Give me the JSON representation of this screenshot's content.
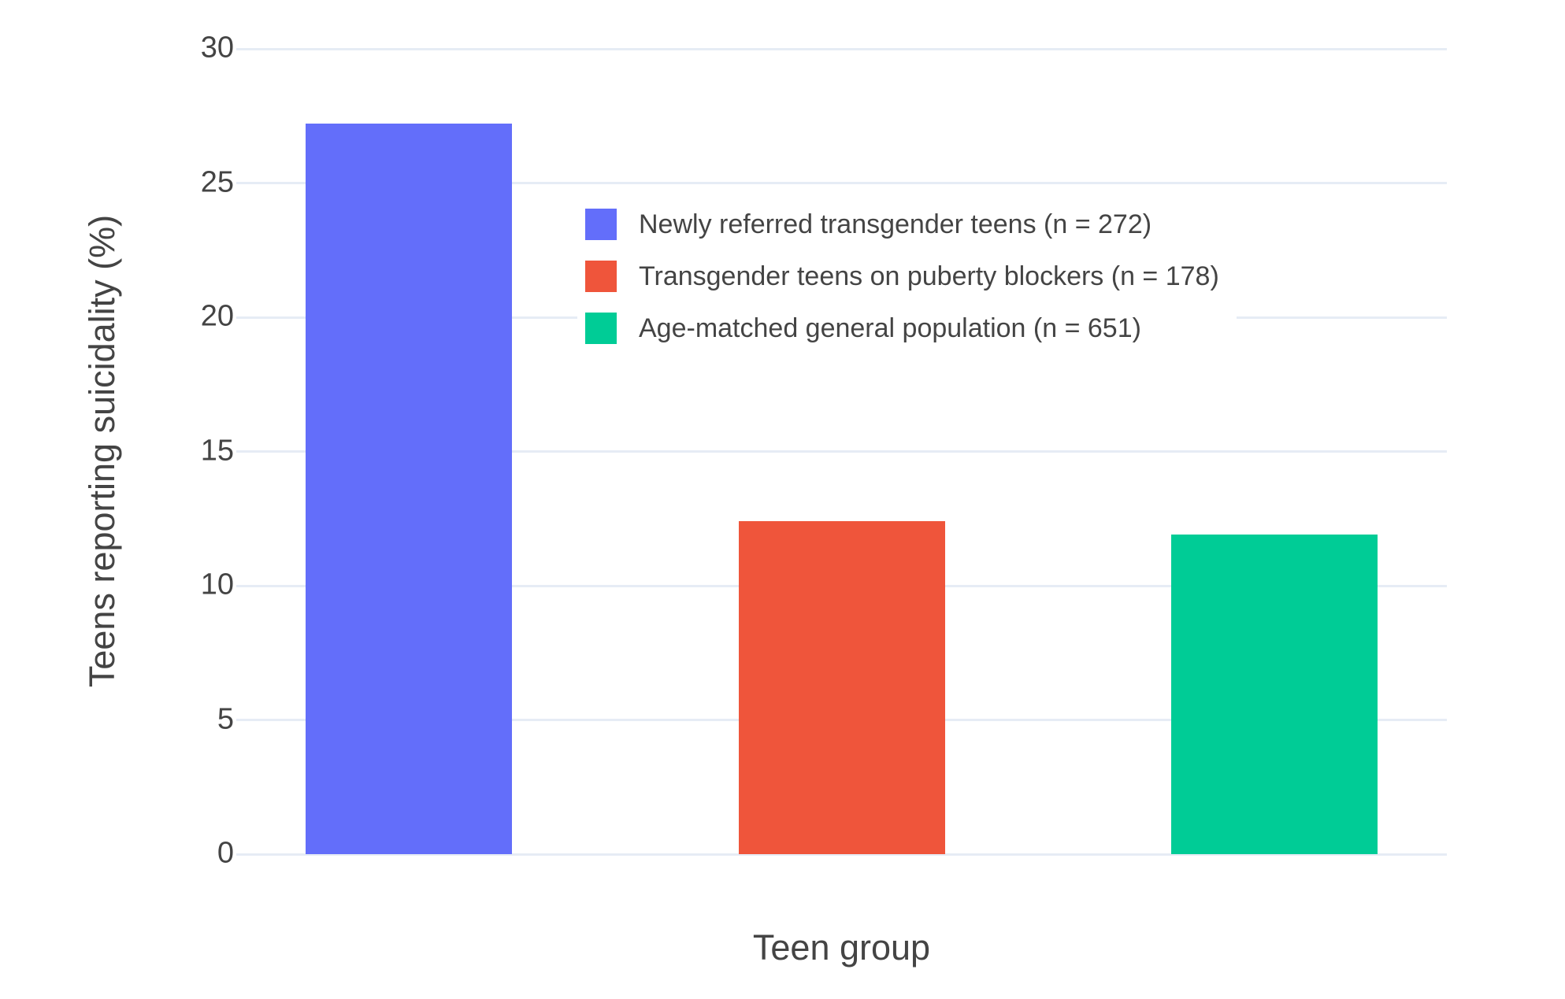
{
  "chart_data": {
    "type": "bar",
    "title": "",
    "xlabel": "Teen group",
    "ylabel": "Teens reporting suicidality (%)",
    "ylim": [
      0,
      30
    ],
    "yticks": [
      0,
      5,
      10,
      15,
      20,
      25,
      30
    ],
    "grid": true,
    "x_tick_labels": [],
    "legend_position": "inside-top-center",
    "series": [
      {
        "name": "Newly referred transgender teens (n = 272)",
        "value": 27.2,
        "color": "#636EFA"
      },
      {
        "name": "Transgender teens on puberty blockers (n = 178)",
        "value": 12.4,
        "color": "#EF553B"
      },
      {
        "name": "Age-matched general population (n = 651)",
        "value": 11.9,
        "color": "#00CC96"
      }
    ],
    "colors": {
      "grid": "#E6ECF5",
      "text": "#444444",
      "background": "#FFFFFF"
    }
  }
}
